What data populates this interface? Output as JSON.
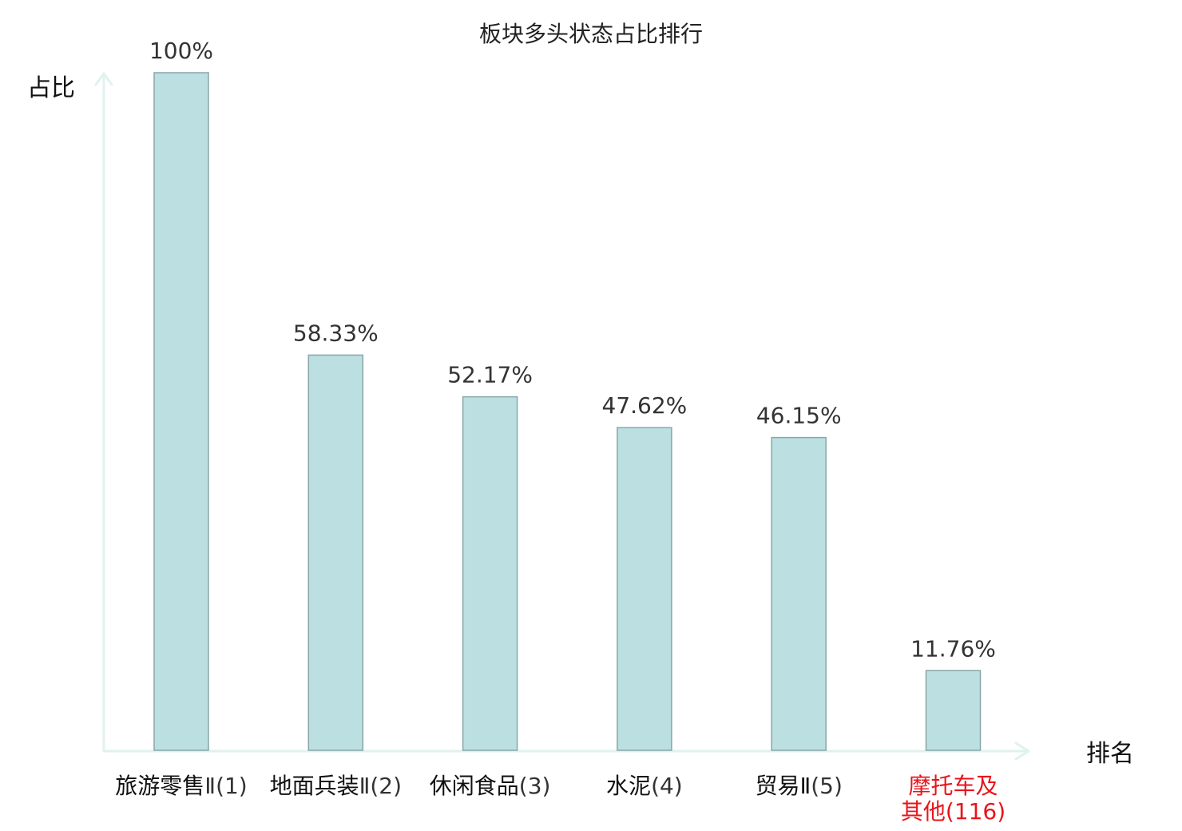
{
  "chart_data": {
    "type": "bar",
    "title": "板块多头状态占比排行",
    "xlabel": "排名",
    "ylabel": "占比",
    "ylim": [
      0,
      100
    ],
    "grid": false,
    "categories": [
      {
        "name": "旅游零售",
        "code": "Ⅱ(1)",
        "highlight": false
      },
      {
        "name": "地面兵装",
        "code": "Ⅱ(2)",
        "highlight": false
      },
      {
        "name": "休闲食品",
        "code": "(3)",
        "highlight": false
      },
      {
        "name": "水泥",
        "code": "(4)",
        "highlight": false
      },
      {
        "name": "贸易Ⅱ",
        "code": "(5)",
        "highlight": false
      },
      {
        "name": "摩托车及其他",
        "code": "(116)",
        "highlight": true
      }
    ],
    "values": [
      100,
      58.33,
      52.17,
      47.62,
      46.15,
      11.76
    ],
    "value_labels": [
      "100%",
      "58.33%",
      "52.17%",
      "47.62%",
      "46.15%",
      "11.76%"
    ],
    "colors": {
      "bar_fill": "#bce0e2",
      "bar_stroke": "#87a6aa",
      "axis": "#dff2ef",
      "highlight_text": "#e8151b",
      "normal_text": "#111111"
    }
  }
}
